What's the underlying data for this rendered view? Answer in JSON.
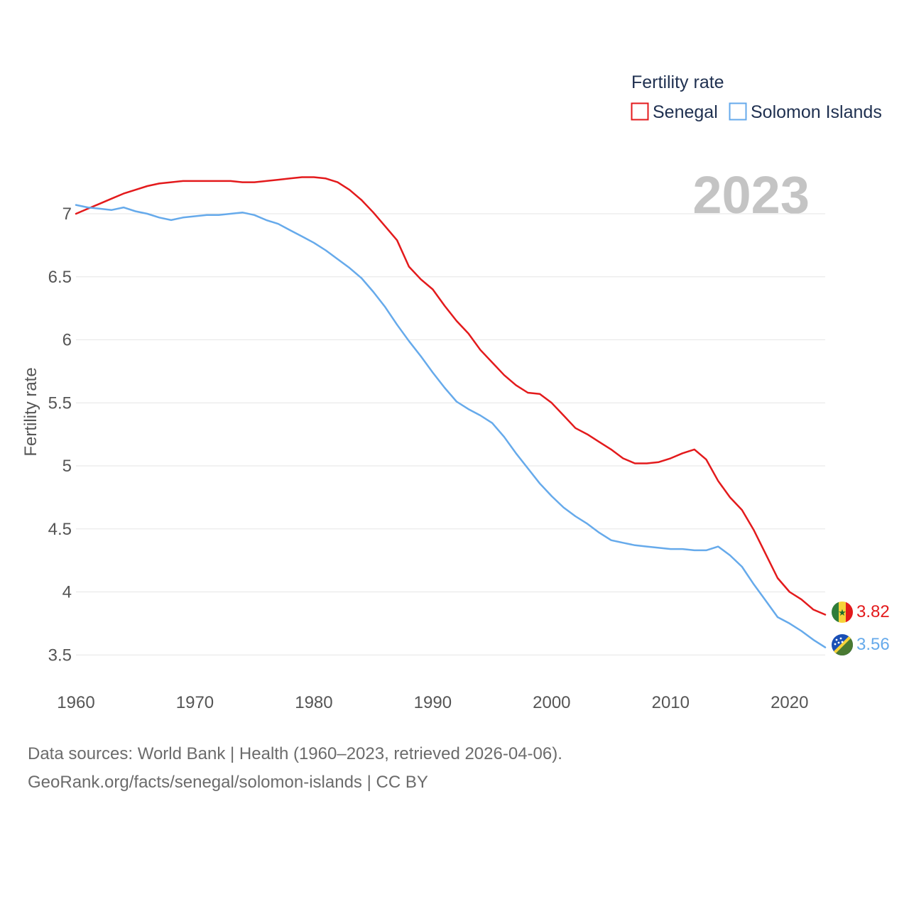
{
  "chart_data": {
    "type": "line",
    "title": "Fertility rate",
    "year_label": "2023",
    "xlabel": "",
    "ylabel": "Fertility rate",
    "xlim": [
      1960,
      2023
    ],
    "ylim": [
      3.4,
      7.4
    ],
    "x_ticks": [
      "1960",
      "1970",
      "1980",
      "1990",
      "2000",
      "2010",
      "2020"
    ],
    "y_ticks": [
      "3.5",
      "4",
      "4.5",
      "5",
      "5.5",
      "6",
      "6.5",
      "7"
    ],
    "legend_position": "top-right",
    "series": [
      {
        "name": "Senegal",
        "color": "#e31a1c",
        "end_label": "3.82",
        "x": [
          1960,
          1961,
          1962,
          1963,
          1964,
          1965,
          1966,
          1967,
          1968,
          1969,
          1970,
          1971,
          1972,
          1973,
          1974,
          1975,
          1976,
          1977,
          1978,
          1979,
          1980,
          1981,
          1982,
          1983,
          1984,
          1985,
          1986,
          1987,
          1988,
          1989,
          1990,
          1991,
          1992,
          1993,
          1994,
          1995,
          1996,
          1997,
          1998,
          1999,
          2000,
          2001,
          2002,
          2003,
          2004,
          2005,
          2006,
          2007,
          2008,
          2009,
          2010,
          2011,
          2012,
          2013,
          2014,
          2015,
          2016,
          2017,
          2018,
          2019,
          2020,
          2021,
          2022,
          2023
        ],
        "values": [
          7.0,
          7.04,
          7.08,
          7.12,
          7.16,
          7.19,
          7.22,
          7.24,
          7.25,
          7.26,
          7.26,
          7.26,
          7.26,
          7.26,
          7.25,
          7.25,
          7.26,
          7.27,
          7.28,
          7.29,
          7.29,
          7.28,
          7.25,
          7.19,
          7.11,
          7.01,
          6.9,
          6.79,
          6.58,
          6.48,
          6.4,
          6.27,
          6.15,
          6.05,
          5.92,
          5.82,
          5.72,
          5.64,
          5.58,
          5.57,
          5.5,
          5.4,
          5.3,
          5.25,
          5.19,
          5.13,
          5.06,
          5.02,
          5.02,
          5.03,
          5.06,
          5.1,
          5.13,
          5.05,
          4.88,
          4.75,
          4.65,
          4.49,
          4.3,
          4.11,
          4.0,
          3.94,
          3.86,
          3.82
        ]
      },
      {
        "name": "Solomon Islands",
        "color": "#66aaeb",
        "end_label": "3.56",
        "x": [
          1960,
          1961,
          1962,
          1963,
          1964,
          1965,
          1966,
          1967,
          1968,
          1969,
          1970,
          1971,
          1972,
          1973,
          1974,
          1975,
          1976,
          1977,
          1978,
          1979,
          1980,
          1981,
          1982,
          1983,
          1984,
          1985,
          1986,
          1987,
          1988,
          1989,
          1990,
          1991,
          1992,
          1993,
          1994,
          1995,
          1996,
          1997,
          1998,
          1999,
          2000,
          2001,
          2002,
          2003,
          2004,
          2005,
          2006,
          2007,
          2008,
          2009,
          2010,
          2011,
          2012,
          2013,
          2014,
          2015,
          2016,
          2017,
          2018,
          2019,
          2020,
          2021,
          2022,
          2023
        ],
        "values": [
          7.07,
          7.05,
          7.04,
          7.03,
          7.05,
          7.02,
          7.0,
          6.97,
          6.95,
          6.97,
          6.98,
          6.99,
          6.99,
          7.0,
          7.01,
          6.99,
          6.95,
          6.92,
          6.87,
          6.82,
          6.77,
          6.71,
          6.64,
          6.57,
          6.49,
          6.38,
          6.26,
          6.12,
          5.99,
          5.87,
          5.74,
          5.62,
          5.51,
          5.45,
          5.4,
          5.34,
          5.23,
          5.1,
          4.98,
          4.86,
          4.76,
          4.67,
          4.6,
          4.54,
          4.47,
          4.41,
          4.39,
          4.37,
          4.36,
          4.35,
          4.34,
          4.34,
          4.33,
          4.33,
          4.36,
          4.29,
          4.2,
          4.06,
          3.93,
          3.8,
          3.75,
          3.69,
          3.62,
          3.56
        ]
      }
    ]
  },
  "footer": {
    "sources": "Data sources: World Bank | Health (1960–2023, retrieved 2026-04-06).",
    "link": "GeoRank.org/facts/senegal/solomon-islands | CC BY"
  }
}
